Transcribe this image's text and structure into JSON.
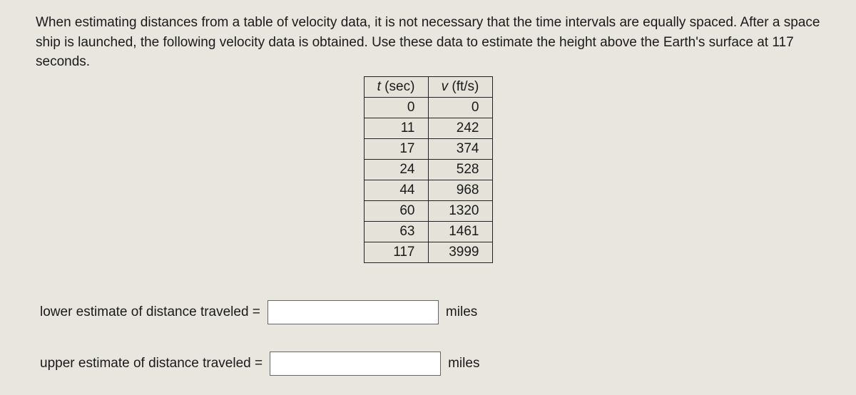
{
  "problem": {
    "text": "When estimating distances from a table of velocity data, it is not necessary that the time intervals are equally spaced. After a space ship is launched, the following velocity data is obtained. Use these data to estimate the height above the Earth's surface at 117 seconds."
  },
  "table": {
    "headers": {
      "t_var": "t",
      "t_unit": " (sec)",
      "v_var": "v",
      "v_unit": " (ft/s)"
    },
    "rows": [
      {
        "t": "0",
        "v": "0"
      },
      {
        "t": "11",
        "v": "242"
      },
      {
        "t": "17",
        "v": "374"
      },
      {
        "t": "24",
        "v": "528"
      },
      {
        "t": "44",
        "v": "968"
      },
      {
        "t": "60",
        "v": "1320"
      },
      {
        "t": "63",
        "v": "1461"
      },
      {
        "t": "117",
        "v": "3999"
      }
    ]
  },
  "answers": {
    "lower_label": "lower estimate of distance traveled =",
    "upper_label": "upper estimate of distance traveled =",
    "unit": "miles",
    "lower_value": "",
    "upper_value": ""
  },
  "style": {
    "background": "#e8e6df",
    "cell_background": "#e4e2d9",
    "border_color": "#222222",
    "input_background": "#ffffff",
    "font_family": "Lucida Sans"
  }
}
